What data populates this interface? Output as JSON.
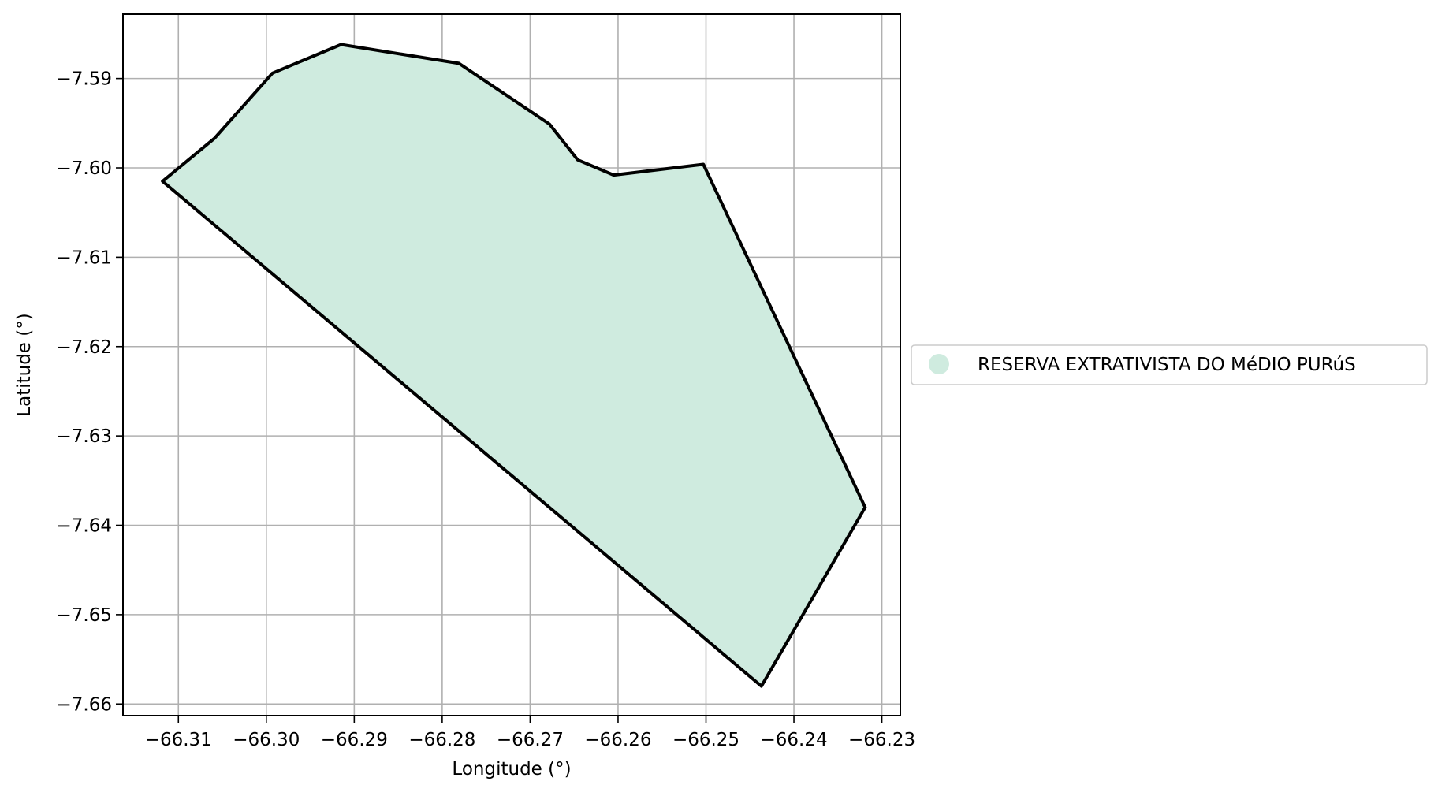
{
  "chart_data": {
    "type": "map",
    "xlabel": "Longitude (°)",
    "ylabel": "Latitude (°)",
    "xlim": [
      -66.3163,
      -66.2279
    ],
    "ylim": [
      -7.6613,
      -7.5828
    ],
    "grid": true,
    "x_ticks": [
      -66.31,
      -66.3,
      -66.29,
      -66.28,
      -66.27,
      -66.26,
      -66.25,
      -66.24,
      -66.23
    ],
    "x_tick_labels": [
      "−66.31",
      "−66.30",
      "−66.29",
      "−66.28",
      "−66.27",
      "−66.26",
      "−66.25",
      "−66.24",
      "−66.23"
    ],
    "y_ticks": [
      -7.59,
      -7.6,
      -7.61,
      -7.62,
      -7.63,
      -7.64,
      -7.65,
      -7.66
    ],
    "y_tick_labels": [
      "−7.59",
      "−7.60",
      "−7.61",
      "−7.62",
      "−7.63",
      "−7.64",
      "−7.65",
      "−7.66"
    ],
    "legend_position": "right-center",
    "series": [
      {
        "name": "RESERVA EXTRATIVISTA DO MéDIO PURúS",
        "fill_color": "#cfebdf",
        "edge_color": "#000000",
        "polygon": [
          [
            -66.3118,
            -7.6015
          ],
          [
            -66.3059,
            -7.5967
          ],
          [
            -66.2993,
            -7.5894
          ],
          [
            -66.2915,
            -7.5862
          ],
          [
            -66.2781,
            -7.5883
          ],
          [
            -66.2678,
            -7.5951
          ],
          [
            -66.2646,
            -7.5991
          ],
          [
            -66.2605,
            -7.6008
          ],
          [
            -66.2503,
            -7.5996
          ],
          [
            -66.2319,
            -7.638
          ],
          [
            -66.2437,
            -7.658
          ],
          [
            -66.3118,
            -7.6015
          ]
        ]
      }
    ]
  }
}
